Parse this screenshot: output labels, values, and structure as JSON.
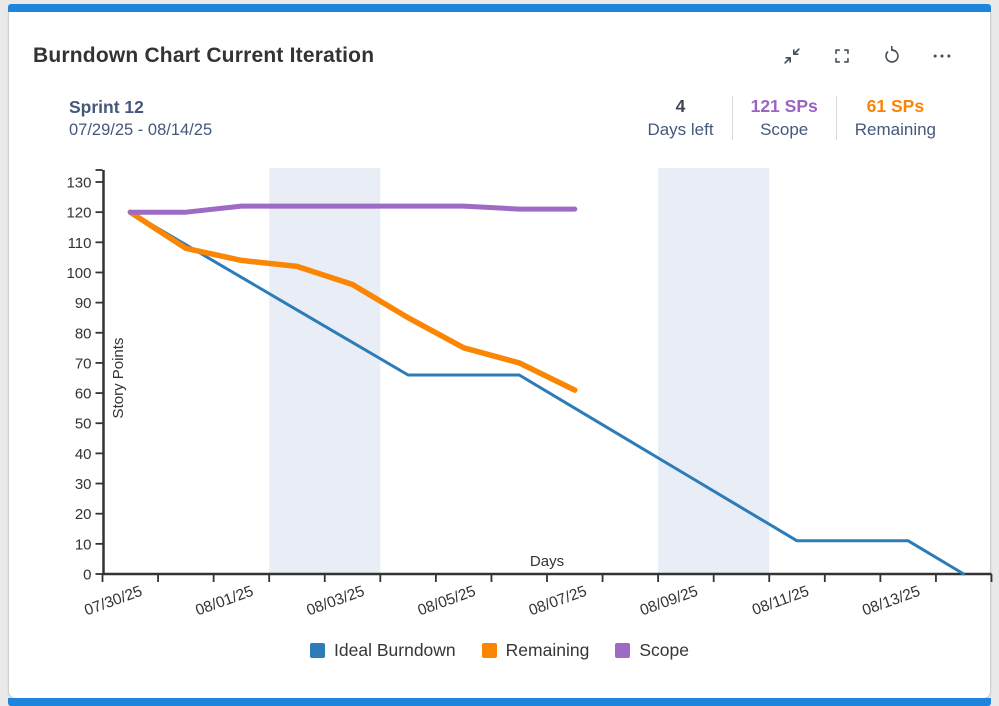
{
  "page": {
    "accent_color": "#1d86dc",
    "card_background": "#ffffff"
  },
  "header": {
    "title": "Burndown Chart Current Iteration",
    "icons": [
      {
        "name": "collapse"
      },
      {
        "name": "fullscreen"
      },
      {
        "name": "refresh"
      },
      {
        "name": "more-options"
      }
    ]
  },
  "sprint": {
    "name": "Sprint 12",
    "date_range": "07/29/25 - 08/14/25"
  },
  "stats": [
    {
      "value": "4",
      "label": "Days left",
      "value_color": "#3e4450"
    },
    {
      "value": "121 SPs",
      "label": "Scope",
      "value_color": "#9d63c3"
    },
    {
      "value": "61 SPs",
      "label": "Remaining",
      "value_color": "#f98405"
    }
  ],
  "chart_data": {
    "type": "line",
    "title": "",
    "xlabel": "Days",
    "ylabel": "Story Points",
    "ylim": [
      0,
      130
    ],
    "yticks": [
      0,
      10,
      20,
      30,
      40,
      50,
      60,
      70,
      80,
      90,
      100,
      110,
      120,
      130
    ],
    "categories": [
      "07/30/25",
      "07/31/25",
      "08/01/25",
      "08/02/25",
      "08/03/25",
      "08/04/25",
      "08/05/25",
      "08/06/25",
      "08/07/25",
      "08/08/25",
      "08/09/25",
      "08/10/25",
      "08/11/25",
      "08/12/25",
      "08/13/25",
      "08/14/25"
    ],
    "xtick_labels": [
      "07/30/25",
      "08/01/25",
      "08/03/25",
      "08/05/25",
      "08/07/25",
      "08/09/25",
      "08/11/25",
      "08/13/25"
    ],
    "weekend_bands": [
      {
        "from": "08/02/25",
        "to": "08/03/25"
      },
      {
        "from": "08/09/25",
        "to": "08/10/25"
      }
    ],
    "band_color": "#e8edf6",
    "axis_color": "#333333",
    "tick_label_color": "#333333",
    "grid": false,
    "legend_position": "bottom",
    "series": [
      {
        "name": "Ideal Burndown",
        "color": "#2d7cb8",
        "stroke_width": 3,
        "values": [
          120,
          109.2,
          98.4,
          87.6,
          76.8,
          66,
          66,
          66,
          55,
          44,
          33,
          22,
          11,
          11,
          11,
          0
        ]
      },
      {
        "name": "Remaining",
        "color": "#fb8604",
        "stroke_width": 5.5,
        "values": [
          120,
          108,
          104,
          102,
          96,
          85,
          75,
          70,
          61
        ]
      },
      {
        "name": "Scope",
        "color": "#9d6ac4",
        "stroke_width": 5,
        "values": [
          120,
          120,
          122,
          122,
          122,
          122,
          122,
          121,
          121
        ]
      }
    ]
  }
}
